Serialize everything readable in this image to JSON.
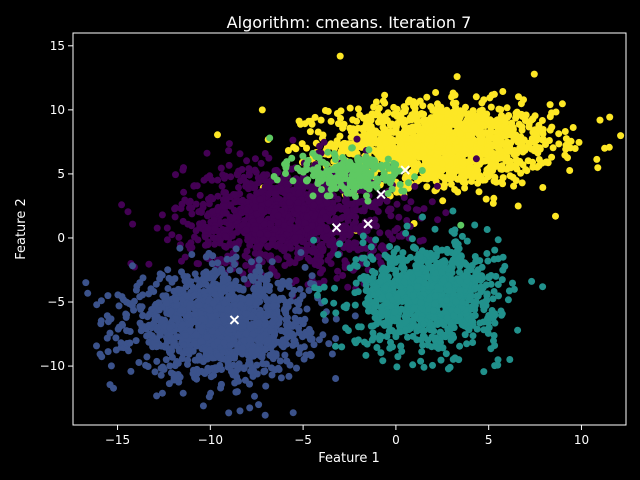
{
  "chart_data": {
    "type": "scatter",
    "title": "Algorithm: cmeans. Iteration 7",
    "xlabel": "Feature 1",
    "ylabel": "Feature 2",
    "xlim": [
      -17.4,
      12.4
    ],
    "ylim": [
      -14.6,
      16.0
    ],
    "xticks": [
      -15,
      -10,
      -5,
      0,
      5,
      10
    ],
    "yticks": [
      -10,
      -5,
      0,
      5,
      10,
      15
    ],
    "grid": false,
    "background": "#000000",
    "clusters": [
      {
        "color": "#fde725",
        "center": [
          2.5,
          7.3
        ],
        "spread": [
          3.0,
          1.6
        ],
        "count": 1400
      },
      {
        "color": "#440154",
        "center": [
          -5.8,
          1.6
        ],
        "spread": [
          2.8,
          2.1
        ],
        "count": 1200
      },
      {
        "color": "#3b528b",
        "center": [
          -9.5,
          -6.8
        ],
        "spread": [
          2.4,
          2.0
        ],
        "count": 1300
      },
      {
        "color": "#21918c",
        "center": [
          1.7,
          -4.5
        ],
        "spread": [
          1.9,
          2.0
        ],
        "count": 1000
      },
      {
        "color": "#5ec962",
        "center": [
          -2.3,
          5.0
        ],
        "spread": [
          1.5,
          0.9
        ],
        "count": 220
      }
    ],
    "outliers": [
      {
        "x": 11.0,
        "y": 9.2,
        "color": "#fde725"
      },
      {
        "x": 8.6,
        "y": 1.7,
        "color": "#fde725"
      },
      {
        "x": -7.2,
        "y": 10.0,
        "color": "#fde725"
      },
      {
        "x": -3.0,
        "y": 14.2,
        "color": "#fde725"
      },
      {
        "x": 3.3,
        "y": 12.6,
        "color": "#fde725"
      },
      {
        "x": -6.8,
        "y": 7.8,
        "color": "#5ec962"
      },
      {
        "x": -8.4,
        "y": -13.5,
        "color": "#3b528b"
      },
      {
        "x": -15.9,
        "y": -6.7,
        "color": "#3b528b"
      },
      {
        "x": 5.5,
        "y": -9.5,
        "color": "#21918c"
      },
      {
        "x": 3.5,
        "y": 1.0,
        "color": "#5ec962"
      }
    ],
    "centroids": [
      {
        "x": 0.5,
        "y": 5.3
      },
      {
        "x": -0.8,
        "y": 3.4
      },
      {
        "x": -3.2,
        "y": 0.8
      },
      {
        "x": -1.5,
        "y": 1.1
      },
      {
        "x": -8.7,
        "y": -6.4
      }
    ]
  }
}
